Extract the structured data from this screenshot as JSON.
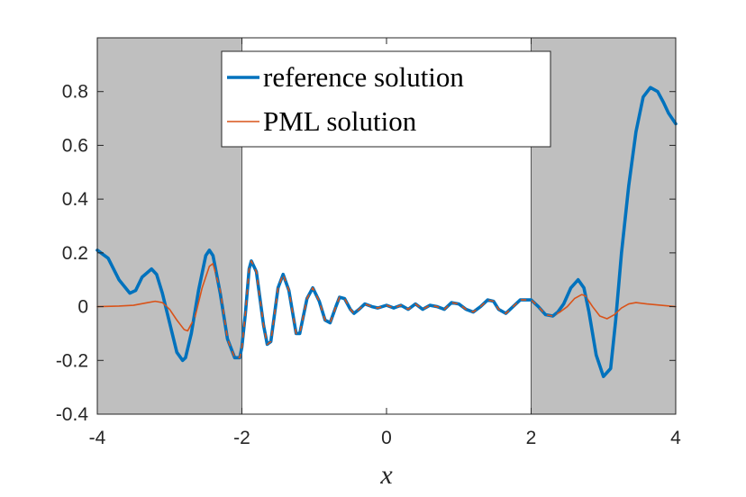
{
  "chart_data": {
    "type": "line",
    "title": "",
    "xlabel": "x",
    "ylabel": "",
    "xlim": [
      -4,
      4
    ],
    "ylim": [
      -0.4,
      1.0
    ],
    "xticks": [
      -4,
      -2,
      0,
      2,
      4
    ],
    "xtick_labels": [
      "-4",
      "-2",
      "0",
      "2",
      "4"
    ],
    "yticks": [
      -0.4,
      -0.2,
      0,
      0.2,
      0.4,
      0.6,
      0.8
    ],
    "ytick_labels": [
      "-0.4",
      "-0.2",
      "0",
      "0.2",
      "0.4",
      "0.6",
      "0.8"
    ],
    "grid": false,
    "legend_position": "top-center",
    "shaded_regions": [
      {
        "x_range": [
          -4,
          -2
        ],
        "color": "#bfbfbf"
      },
      {
        "x_range": [
          2,
          4
        ],
        "color": "#bfbfbf"
      }
    ],
    "series": [
      {
        "name": "reference solution",
        "color": "#0072BD",
        "line_width": "thick",
        "x": [
          -4,
          -3.85,
          -3.7,
          -3.55,
          -3.47,
          -3.38,
          -3.25,
          -3.18,
          -3.1,
          -3.0,
          -2.9,
          -2.82,
          -2.78,
          -2.7,
          -2.6,
          -2.5,
          -2.45,
          -2.4,
          -2.3,
          -2.2,
          -2.1,
          -2.03,
          -2.0,
          -1.95,
          -1.9,
          -1.87,
          -1.8,
          -1.7,
          -1.65,
          -1.6,
          -1.5,
          -1.43,
          -1.35,
          -1.25,
          -1.2,
          -1.1,
          -1.02,
          -0.93,
          -0.85,
          -0.78,
          -0.7,
          -0.65,
          -0.58,
          -0.5,
          -0.45,
          -0.38,
          -0.3,
          -0.2,
          -0.12,
          0.0,
          0.1,
          0.2,
          0.3,
          0.4,
          0.5,
          0.6,
          0.7,
          0.8,
          0.9,
          1.0,
          1.1,
          1.2,
          1.3,
          1.4,
          1.48,
          1.55,
          1.65,
          1.75,
          1.85,
          1.95,
          2.0,
          2.1,
          2.2,
          2.3,
          2.37,
          2.45,
          2.55,
          2.65,
          2.73,
          2.8,
          2.9,
          3.0,
          3.1,
          3.17,
          3.25,
          3.35,
          3.45,
          3.55,
          3.65,
          3.75,
          3.83,
          3.9,
          4.0
        ],
        "values": [
          0.21,
          0.18,
          0.1,
          0.05,
          0.06,
          0.11,
          0.14,
          0.12,
          0.05,
          -0.06,
          -0.17,
          -0.2,
          -0.19,
          -0.1,
          0.06,
          0.19,
          0.21,
          0.19,
          0.05,
          -0.12,
          -0.19,
          -0.19,
          -0.15,
          -0.02,
          0.14,
          0.17,
          0.13,
          -0.07,
          -0.14,
          -0.13,
          0.07,
          0.12,
          0.06,
          -0.1,
          -0.1,
          0.03,
          0.07,
          0.02,
          -0.05,
          -0.06,
          0.0,
          0.035,
          0.03,
          -0.01,
          -0.025,
          -0.01,
          0.01,
          0.0,
          -0.005,
          0.005,
          -0.005,
          0.005,
          -0.01,
          0.01,
          -0.01,
          0.005,
          0.0,
          -0.01,
          0.015,
          0.01,
          -0.01,
          -0.02,
          0.0,
          0.025,
          0.02,
          -0.01,
          -0.025,
          0.0,
          0.025,
          0.025,
          0.025,
          0.0,
          -0.03,
          -0.035,
          -0.02,
          0.01,
          0.07,
          0.1,
          0.07,
          -0.02,
          -0.18,
          -0.26,
          -0.23,
          -0.05,
          0.2,
          0.45,
          0.65,
          0.78,
          0.815,
          0.8,
          0.76,
          0.72,
          0.68
        ]
      },
      {
        "name": "PML solution",
        "color": "#D95319",
        "line_width": "thin",
        "x": [
          -4,
          -3.7,
          -3.5,
          -3.3,
          -3.2,
          -3.1,
          -3.0,
          -2.9,
          -2.8,
          -2.75,
          -2.65,
          -2.55,
          -2.45,
          -2.4,
          -2.3,
          -2.2,
          -2.1,
          -2.03,
          -2.0,
          -1.95,
          -1.9,
          -1.87,
          -1.8,
          -1.7,
          -1.65,
          -1.6,
          -1.5,
          -1.43,
          -1.35,
          -1.25,
          -1.2,
          -1.1,
          -1.02,
          -0.93,
          -0.85,
          -0.78,
          -0.7,
          -0.65,
          -0.58,
          -0.5,
          -0.45,
          -0.38,
          -0.3,
          -0.2,
          -0.12,
          0.0,
          0.1,
          0.2,
          0.3,
          0.4,
          0.5,
          0.6,
          0.7,
          0.8,
          0.9,
          1.0,
          1.1,
          1.2,
          1.3,
          1.4,
          1.48,
          1.55,
          1.65,
          1.75,
          1.85,
          1.95,
          2.0,
          2.1,
          2.2,
          2.3,
          2.4,
          2.5,
          2.6,
          2.7,
          2.75,
          2.85,
          2.95,
          3.05,
          3.15,
          3.25,
          3.35,
          3.45,
          3.6,
          3.8,
          4.0
        ],
        "values": [
          0.0,
          0.002,
          0.005,
          0.015,
          0.02,
          0.015,
          -0.01,
          -0.05,
          -0.085,
          -0.09,
          -0.04,
          0.07,
          0.15,
          0.16,
          0.06,
          -0.12,
          -0.19,
          -0.19,
          -0.15,
          -0.02,
          0.14,
          0.17,
          0.13,
          -0.07,
          -0.14,
          -0.13,
          0.07,
          0.12,
          0.06,
          -0.1,
          -0.1,
          0.03,
          0.07,
          0.02,
          -0.05,
          -0.06,
          0.0,
          0.035,
          0.03,
          -0.01,
          -0.025,
          -0.01,
          0.01,
          0.0,
          -0.005,
          0.005,
          -0.005,
          0.005,
          -0.01,
          0.01,
          -0.01,
          0.005,
          0.0,
          -0.01,
          0.015,
          0.01,
          -0.01,
          -0.02,
          0.0,
          0.025,
          0.02,
          -0.01,
          -0.025,
          0.0,
          0.025,
          0.025,
          0.025,
          0.0,
          -0.03,
          -0.035,
          -0.02,
          0.0,
          0.03,
          0.045,
          0.04,
          0.0,
          -0.035,
          -0.045,
          -0.03,
          -0.005,
          0.01,
          0.015,
          0.01,
          0.005,
          0.0
        ]
      }
    ]
  }
}
